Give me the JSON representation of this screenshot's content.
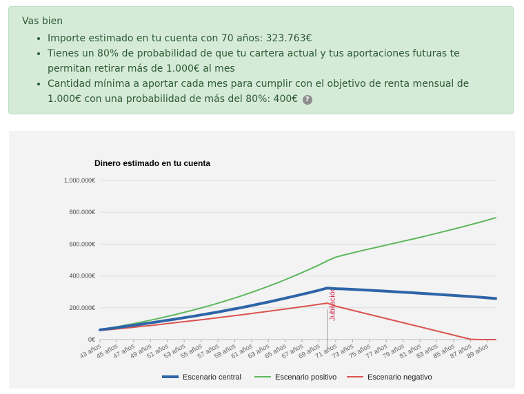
{
  "summary": {
    "title": "Vas bien",
    "items": [
      "Importe estimado en tu cuenta con 70 años: 323.763€",
      "Tienes un 80% de probabilidad de que tu cartera actual y tus aportaciones futuras te permitan retirar más de 1.000€ al mes",
      "Cantidad mínima a aportar cada mes para cumplir con el objetivo de renta mensual de 1.000€ con una probabilidad de más del 80%: 400€"
    ],
    "help_icon": "question-circle-icon",
    "help_glyph": "?"
  },
  "colors": {
    "alert_bg": "#d5ebd8",
    "alert_text": "#2d5a33",
    "central": "#2e64a8",
    "positivo": "#5cb85c",
    "negativo": "#d9534f",
    "jubilacion": "#cc3355"
  },
  "chart_data": {
    "type": "line",
    "title": "Dinero estimado en tu cuenta",
    "ylim": [
      0,
      1000000
    ],
    "yticks": [
      "0€",
      "200.000€",
      "400.000€",
      "600.000€",
      "800.000€",
      "1.000.000€"
    ],
    "xlabels": [
      "43 años",
      "45 años",
      "47 años",
      "49 años",
      "51 años",
      "53 años",
      "55 años",
      "57 años",
      "59 años",
      "61 años",
      "63 años",
      "65 años",
      "67 años",
      "69 años",
      "71 años",
      "73 años",
      "75 años",
      "77 años",
      "79 años",
      "81 años",
      "83 años",
      "85 años",
      "87 años",
      "89 años"
    ],
    "x": [
      43,
      44,
      45,
      46,
      47,
      48,
      49,
      50,
      51,
      52,
      53,
      54,
      55,
      56,
      57,
      58,
      59,
      60,
      61,
      62,
      63,
      64,
      65,
      66,
      67,
      68,
      69,
      70,
      71,
      72,
      73,
      74,
      75,
      76,
      77,
      78,
      79,
      80,
      81,
      82,
      83,
      84,
      85,
      86,
      87,
      88,
      89,
      90
    ],
    "series": [
      {
        "name": "Escenario central",
        "color": "#2e64a8",
        "width": 4,
        "values": [
          61000,
          68000,
          75000,
          82500,
          90000,
          97500,
          105000,
          113000,
          121000,
          129000,
          137500,
          146000,
          155000,
          164000,
          173000,
          183000,
          193000,
          203000,
          214000,
          225000,
          236500,
          248000,
          260000,
          272000,
          284500,
          297000,
          310000,
          323763,
          320000,
          318000,
          315500,
          313000,
          310000,
          307000,
          304000,
          301000,
          298000,
          295000,
          291500,
          288000,
          284500,
          281000,
          277500,
          274000,
          270500,
          266500,
          262500,
          258000
        ]
      },
      {
        "name": "Escenario positivo",
        "color": "#5cb85c",
        "width": 2,
        "values": [
          63000,
          72000,
          81000,
          90500,
          100500,
          111000,
          122000,
          133500,
          145500,
          158000,
          171000,
          184500,
          198500,
          213000,
          228500,
          244500,
          261000,
          278500,
          296500,
          315500,
          335000,
          355500,
          376500,
          398500,
          421000,
          444500,
          468500,
          495000,
          518000,
          532000,
          545000,
          557500,
          570000,
          582000,
          594000,
          606000,
          618000,
          630000,
          642500,
          655000,
          668000,
          681000,
          694500,
          708000,
          722000,
          736000,
          750500,
          766000
        ]
      },
      {
        "name": "Escenario negativo",
        "color": "#d9534f",
        "width": 2,
        "values": [
          57000,
          62000,
          67000,
          72000,
          77500,
          83000,
          88500,
          94500,
          100500,
          106500,
          112500,
          118500,
          124500,
          131000,
          137500,
          144000,
          150500,
          157000,
          164000,
          171000,
          178000,
          185000,
          192000,
          199000,
          206500,
          214000,
          221500,
          229000,
          210000,
          197000,
          184000,
          171000,
          158000,
          145000,
          132000,
          119000,
          106000,
          93000,
          80000,
          67000,
          54000,
          41000,
          28000,
          15000,
          2000,
          0,
          0,
          0
        ]
      }
    ],
    "annotation": {
      "label": "Jubilación",
      "x": 70
    },
    "legend_position": "bottom",
    "grid": true
  }
}
